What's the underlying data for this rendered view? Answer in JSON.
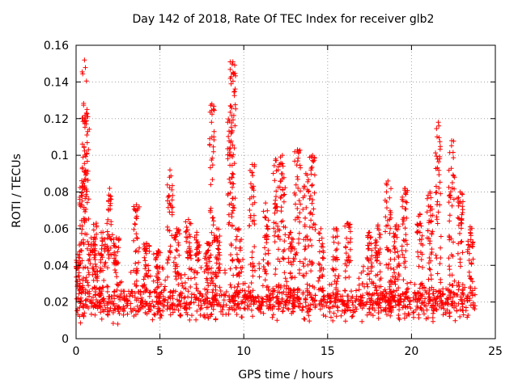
{
  "chart_data": {
    "type": "scatter",
    "title": "Day 142 of 2018, Rate Of TEC Index for receiver glb2",
    "xlabel": "GPS time / hours",
    "ylabel": "ROTI / TECUs",
    "xlim": [
      0,
      25
    ],
    "ylim": [
      0,
      0.16
    ],
    "xticks": [
      0,
      5,
      10,
      15,
      20,
      25
    ],
    "yticks": [
      0,
      0.02,
      0.04,
      0.06,
      0.08,
      0.1,
      0.12,
      0.14,
      0.16
    ],
    "xtick_labels": [
      "0",
      "5",
      "10",
      "15",
      "20",
      "25"
    ],
    "ytick_labels": [
      "0",
      "0.02",
      "0.04",
      "0.06",
      "0.08",
      "0.1",
      "0.12",
      "0.14",
      "0.16"
    ],
    "grid": true,
    "marker": "+",
    "marker_color": "#ff0000",
    "points_seed": 142,
    "points_count": 6500,
    "baseline_roti": 0.018,
    "bursts": [
      {
        "x": 0.1,
        "ymax": 0.046
      },
      {
        "x": 0.35,
        "ymax": 0.083
      },
      {
        "x": 0.5,
        "ymax": 0.152
      },
      {
        "x": 0.65,
        "ymax": 0.125
      },
      {
        "x": 0.9,
        "ymax": 0.055
      },
      {
        "x": 1.2,
        "ymax": 0.063
      },
      {
        "x": 1.6,
        "ymax": 0.058
      },
      {
        "x": 2.0,
        "ymax": 0.082
      },
      {
        "x": 2.4,
        "ymax": 0.055
      },
      {
        "x": 3.6,
        "ymax": 0.073
      },
      {
        "x": 4.2,
        "ymax": 0.052
      },
      {
        "x": 4.9,
        "ymax": 0.048
      },
      {
        "x": 5.6,
        "ymax": 0.092
      },
      {
        "x": 6.0,
        "ymax": 0.06
      },
      {
        "x": 6.7,
        "ymax": 0.065
      },
      {
        "x": 7.2,
        "ymax": 0.058
      },
      {
        "x": 7.8,
        "ymax": 0.052
      },
      {
        "x": 8.1,
        "ymax": 0.128
      },
      {
        "x": 8.4,
        "ymax": 0.06
      },
      {
        "x": 9.2,
        "ymax": 0.127
      },
      {
        "x": 9.35,
        "ymax": 0.151
      },
      {
        "x": 9.7,
        "ymax": 0.06
      },
      {
        "x": 10.5,
        "ymax": 0.095
      },
      {
        "x": 11.3,
        "ymax": 0.074
      },
      {
        "x": 11.9,
        "ymax": 0.098
      },
      {
        "x": 12.3,
        "ymax": 0.1
      },
      {
        "x": 12.8,
        "ymax": 0.058
      },
      {
        "x": 13.2,
        "ymax": 0.103
      },
      {
        "x": 13.7,
        "ymax": 0.09
      },
      {
        "x": 14.1,
        "ymax": 0.1
      },
      {
        "x": 14.6,
        "ymax": 0.06
      },
      {
        "x": 15.5,
        "ymax": 0.06
      },
      {
        "x": 16.2,
        "ymax": 0.063
      },
      {
        "x": 17.5,
        "ymax": 0.058
      },
      {
        "x": 18.0,
        "ymax": 0.062
      },
      {
        "x": 18.6,
        "ymax": 0.086
      },
      {
        "x": 19.1,
        "ymax": 0.062
      },
      {
        "x": 19.6,
        "ymax": 0.082
      },
      {
        "x": 20.5,
        "ymax": 0.068
      },
      {
        "x": 21.1,
        "ymax": 0.08
      },
      {
        "x": 21.6,
        "ymax": 0.118
      },
      {
        "x": 22.4,
        "ymax": 0.108
      },
      {
        "x": 22.9,
        "ymax": 0.08
      },
      {
        "x": 23.5,
        "ymax": 0.061
      }
    ]
  }
}
